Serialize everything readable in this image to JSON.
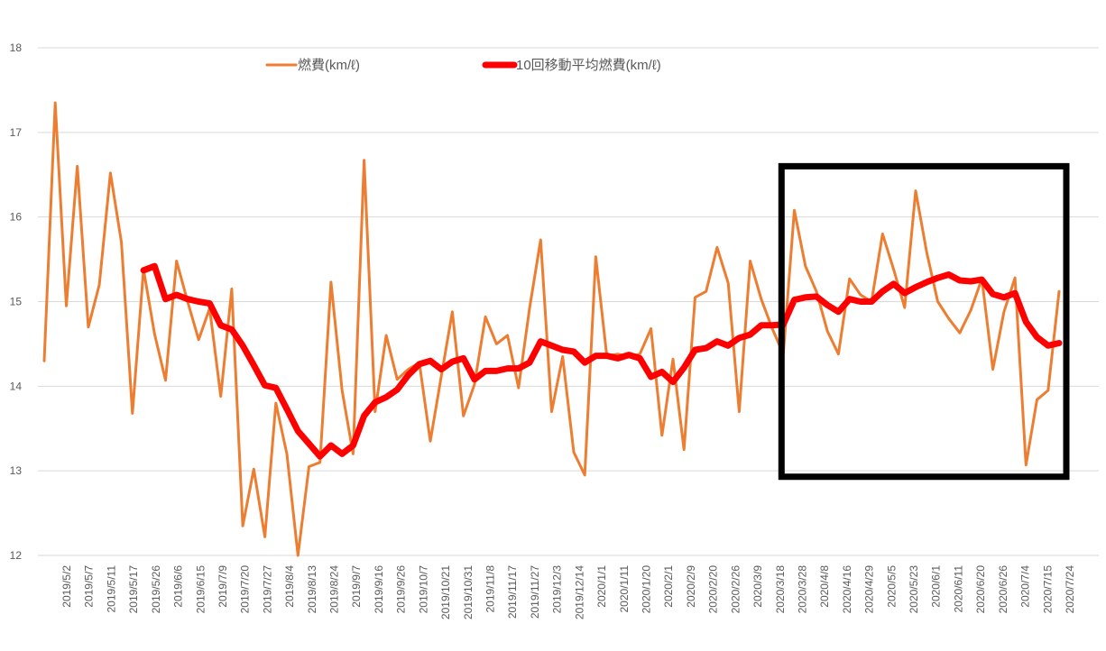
{
  "chart_data": {
    "type": "line",
    "title": "",
    "xlabel": "",
    "ylabel": "",
    "ylim": [
      12,
      18
    ],
    "yticks": [
      12,
      13,
      14,
      15,
      16,
      17,
      18
    ],
    "grid": true,
    "legend_position": "top-center",
    "x_tick_labels": [
      "2019/5/2",
      "2019/5/7",
      "2019/5/11",
      "2019/5/17",
      "2019/5/26",
      "2019/6/6",
      "2019/6/15",
      "2019/7/9",
      "2019/7/20",
      "2019/7/27",
      "2019/8/4",
      "2019/8/13",
      "2019/8/24",
      "2019/9/7",
      "2019/9/16",
      "2019/9/26",
      "2019/10/7",
      "2019/10/21",
      "2019/10/31",
      "2019/11/8",
      "2019/11/17",
      "2019/11/27",
      "2019/12/3",
      "2019/12/14",
      "2020/1/1",
      "2020/1/11",
      "2020/1/20",
      "2020/2/1",
      "2020/2/9",
      "2020/2/20",
      "2020/2/26",
      "2020/3/9",
      "2020/3/18",
      "2020/3/28",
      "2020/4/8",
      "2020/4/16",
      "2020/4/29",
      "2020/5/5",
      "2020/5/23",
      "2020/6/1",
      "2020/6/11",
      "2020/6/20",
      "2020/6/26",
      "2020/7/4",
      "2020/7/15",
      "2020/7/24"
    ],
    "series": [
      {
        "name": "燃費(km/ℓ)",
        "color": "#ED7D31",
        "values": [
          14.3,
          17.35,
          14.95,
          16.6,
          14.7,
          15.2,
          16.52,
          15.7,
          13.68,
          15.38,
          14.62,
          14.07,
          15.48,
          15.0,
          14.55,
          14.92,
          13.88,
          15.15,
          12.35,
          13.02,
          12.22,
          13.8,
          13.2,
          12.0,
          13.05,
          13.1,
          15.23,
          13.95,
          13.2,
          16.67,
          13.7,
          14.6,
          14.08,
          14.2,
          14.28,
          13.35,
          14.12,
          14.88,
          13.65,
          14.02,
          14.82,
          14.5,
          14.6,
          13.98,
          14.92,
          15.73,
          13.7,
          14.35,
          13.22,
          12.95,
          15.53,
          14.36,
          14.38,
          14.35,
          14.38,
          14.68,
          13.42,
          14.32,
          13.25,
          15.05,
          15.12,
          15.64,
          15.22,
          13.7,
          15.48,
          15.03,
          14.68,
          14.38,
          16.08,
          15.42,
          15.12,
          14.65,
          14.38,
          15.27,
          15.08,
          15.0,
          15.8,
          15.38,
          14.93,
          16.31,
          15.58,
          15.0,
          14.8,
          14.63,
          14.9,
          15.27,
          14.2,
          14.88,
          15.28,
          13.07,
          13.84,
          13.95,
          15.12
        ]
      },
      {
        "name": "10回移動平均燃費(km/ℓ)",
        "color": "#FF0000",
        "values": [
          null,
          null,
          null,
          null,
          null,
          null,
          null,
          null,
          null,
          15.37,
          15.42,
          15.03,
          15.08,
          15.03,
          15.0,
          14.98,
          14.72,
          14.67,
          14.48,
          14.25,
          14.01,
          13.98,
          13.73,
          13.47,
          13.32,
          13.17,
          13.3,
          13.2,
          13.3,
          13.65,
          13.81,
          13.87,
          13.96,
          14.13,
          14.26,
          14.3,
          14.2,
          14.29,
          14.33,
          14.08,
          14.18,
          14.18,
          14.21,
          14.21,
          14.28,
          14.53,
          14.48,
          14.43,
          14.41,
          14.28,
          14.36,
          14.36,
          14.33,
          14.37,
          14.33,
          14.11,
          14.17,
          14.05,
          14.22,
          14.43,
          14.45,
          14.53,
          14.48,
          14.57,
          14.61,
          14.72,
          14.72,
          14.73,
          15.02,
          15.05,
          15.06,
          14.96,
          14.88,
          15.03,
          15.0,
          15.0,
          15.12,
          15.21,
          15.1,
          15.17,
          15.23,
          15.28,
          15.32,
          15.25,
          15.24,
          15.26,
          15.09,
          15.05,
          15.1,
          14.76,
          14.58,
          14.48,
          14.51
        ]
      }
    ],
    "annotations": [
      {
        "type": "highlight-box",
        "color": "#000000",
        "x_range_index": [
          67,
          92
        ],
        "y_range": [
          12.93,
          16.6
        ]
      }
    ]
  }
}
